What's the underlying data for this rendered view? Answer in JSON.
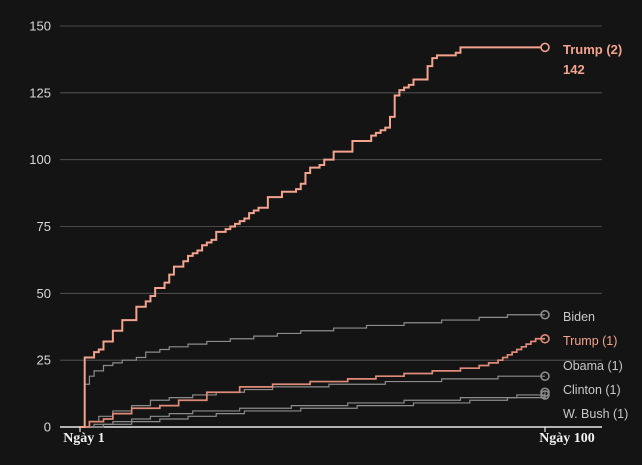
{
  "chart_data": {
    "type": "line",
    "title": "",
    "xlabel": "",
    "ylabel": "",
    "xlim": [
      1,
      100
    ],
    "ylim": [
      0,
      150
    ],
    "yticks": [
      "0",
      "25",
      "50",
      "75",
      "100",
      "125",
      "150"
    ],
    "xticks": [
      "Ngày 1",
      "Ngày 100"
    ],
    "grid": true,
    "step": true,
    "colors": {
      "highlight": "#f4a38e",
      "highlight_dim": "#e08a78",
      "muted": "#8c8c8c",
      "label_muted": "#c8c8c8",
      "background": "#141414",
      "grid": "#5a5a5a"
    },
    "series": [
      {
        "name": "Trump (2)",
        "final_value": "142",
        "emphasis": "highlight",
        "x": [
          1,
          2,
          4,
          5,
          6,
          8,
          9,
          10,
          13,
          15,
          16,
          17,
          19,
          20,
          21,
          23,
          24,
          25,
          26,
          27,
          28,
          29,
          30,
          31,
          32,
          33,
          34,
          35,
          36,
          37,
          38,
          39,
          41,
          44,
          46,
          47,
          48,
          49,
          50,
          52,
          53,
          55,
          59,
          63,
          64,
          65,
          66,
          67,
          68,
          69,
          70,
          71,
          72,
          75,
          76,
          77,
          80,
          81,
          82,
          83,
          84,
          86,
          87,
          88,
          90,
          92,
          96,
          97,
          98,
          100
        ],
        "y": [
          0,
          26,
          28,
          29,
          32,
          36,
          36,
          40,
          45,
          47,
          49,
          52,
          54,
          57,
          60,
          62,
          64,
          65,
          66,
          68,
          69,
          70,
          73,
          73,
          74,
          75,
          76,
          77,
          78,
          80,
          81,
          82,
          86,
          88,
          88,
          89,
          91,
          95,
          97,
          98,
          100,
          103,
          107,
          109,
          110,
          111,
          112,
          116,
          124,
          126,
          127,
          128,
          130,
          135,
          138,
          139,
          139,
          140,
          142,
          142,
          142,
          142,
          142,
          142,
          142,
          142,
          142,
          142,
          142,
          142
        ]
      },
      {
        "name": "Biden",
        "final_value": "",
        "emphasis": "muted",
        "x": [
          1,
          2,
          3,
          4,
          6,
          8,
          10,
          13,
          15,
          18,
          20,
          24,
          28,
          33,
          38,
          43,
          48,
          55,
          62,
          70,
          78,
          86,
          92,
          100
        ],
        "y": [
          0,
          16,
          19,
          21,
          23,
          24,
          25,
          26,
          28,
          29,
          30,
          31,
          32,
          33,
          34,
          35,
          36,
          37,
          38,
          39,
          40,
          41,
          42,
          42
        ]
      },
      {
        "name": "Trump (1)",
        "final_value": "",
        "emphasis": "highlight_dim",
        "x": [
          1,
          3,
          6,
          8,
          12,
          18,
          22,
          28,
          35,
          42,
          50,
          58,
          64,
          70,
          76,
          82,
          86,
          88,
          90,
          91,
          92,
          93,
          94,
          95,
          96,
          97,
          98,
          100
        ],
        "y": [
          0,
          2,
          3,
          5,
          7,
          8,
          10,
          13,
          15,
          16,
          17,
          18,
          19,
          20,
          21,
          22,
          23,
          24,
          25,
          26,
          27,
          28,
          29,
          30,
          31,
          32,
          33,
          33
        ]
      },
      {
        "name": "Obama (1)",
        "final_value": "",
        "emphasis": "muted",
        "x": [
          1,
          3,
          5,
          8,
          12,
          16,
          20,
          25,
          30,
          36,
          42,
          48,
          54,
          60,
          66,
          72,
          78,
          84,
          90,
          100
        ],
        "y": [
          0,
          2,
          4,
          6,
          8,
          10,
          11,
          12,
          13,
          14,
          15,
          15,
          16,
          16,
          17,
          17,
          18,
          18,
          19,
          19
        ]
      },
      {
        "name": "Clinton (1)",
        "final_value": "",
        "emphasis": "muted",
        "x": [
          1,
          4,
          8,
          12,
          16,
          20,
          25,
          30,
          35,
          40,
          46,
          52,
          58,
          64,
          70,
          76,
          82,
          88,
          94,
          100
        ],
        "y": [
          0,
          1,
          2,
          3,
          4,
          5,
          6,
          6,
          7,
          7,
          8,
          8,
          9,
          9,
          10,
          10,
          11,
          11,
          12,
          13
        ]
      },
      {
        "name": "W. Bush (1)",
        "final_value": "",
        "emphasis": "muted",
        "x": [
          1,
          6,
          12,
          18,
          24,
          30,
          36,
          42,
          48,
          54,
          60,
          66,
          72,
          78,
          84,
          88,
          92,
          96,
          100
        ],
        "y": [
          0,
          1,
          2,
          3,
          4,
          5,
          6,
          6,
          7,
          7,
          8,
          8,
          9,
          9,
          10,
          10,
          11,
          11,
          12
        ]
      }
    ]
  }
}
